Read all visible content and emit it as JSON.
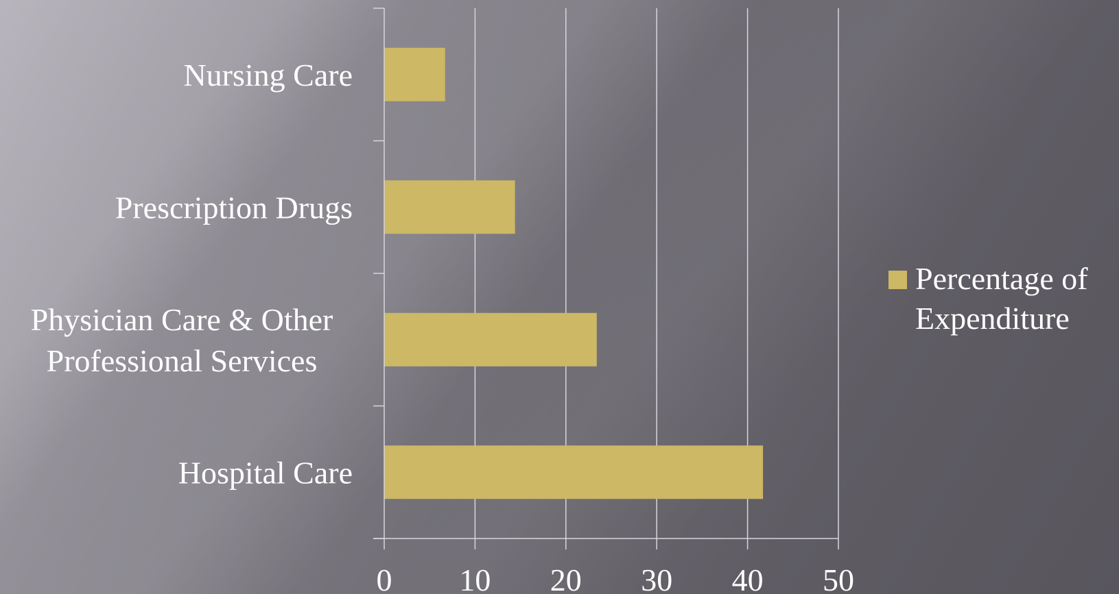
{
  "chart_data": {
    "type": "bar",
    "orientation": "horizontal",
    "categories": [
      "Nursing Care",
      "Prescription Drugs",
      "Physician Care & Other Professional Services",
      "Hospital Care"
    ],
    "category_label_lines": [
      [
        "Nursing Care"
      ],
      [
        "Prescription Drugs"
      ],
      [
        "Physician Care & Other",
        "Professional Services"
      ],
      [
        "Hospital Care"
      ]
    ],
    "series": [
      {
        "name": "Percentage of Expenditure",
        "values": [
          6.7,
          14.4,
          23.4,
          41.7
        ],
        "color": "#ccb865"
      }
    ],
    "xlim": [
      0,
      50
    ],
    "xticks": [
      0,
      10,
      20,
      30,
      40,
      50
    ],
    "xtick_labels": [
      "0",
      "10",
      "20",
      "30",
      "40",
      "50"
    ],
    "grid": true,
    "legend": {
      "position": "right",
      "lines": [
        "Percentage of",
        "Expenditure"
      ]
    },
    "colors": {
      "bar": "#ccb865",
      "grid": "#d8d6dc",
      "text": "#ffffff"
    }
  }
}
